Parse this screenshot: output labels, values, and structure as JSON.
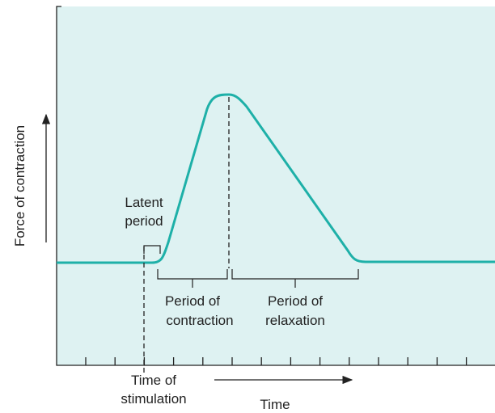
{
  "diagram": {
    "y_axis_label": "Force of contraction",
    "x_axis_label": "Time",
    "latent_period": [
      "Latent",
      "period"
    ],
    "period_of_contraction": [
      "Period of",
      "contraction"
    ],
    "period_of_relaxation": [
      "Period of",
      "relaxation"
    ],
    "time_of_stimulation": [
      "Time of",
      "stimulation"
    ]
  }
}
